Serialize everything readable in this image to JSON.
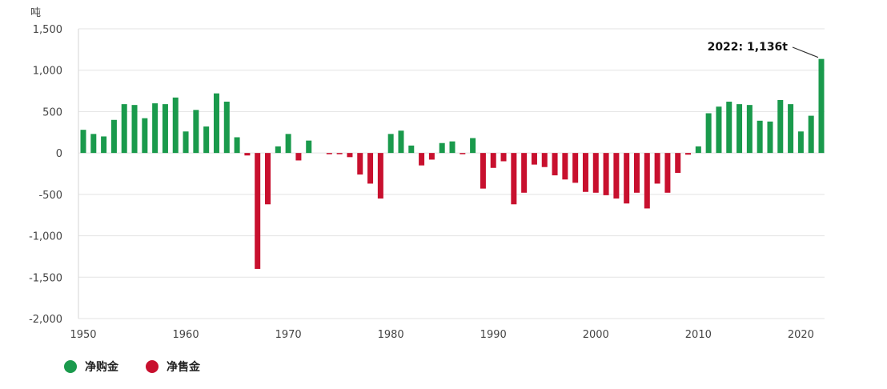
{
  "chart_data": {
    "type": "bar",
    "unit_label": "吨",
    "title": "",
    "xlabel": "",
    "ylabel": "吨",
    "ylim": [
      -2000,
      1500
    ],
    "yticks": [
      1500,
      1000,
      500,
      0,
      -500,
      -1000,
      -1500,
      -2000
    ],
    "ytick_labels": [
      "1,500",
      "1,000",
      "500",
      "0",
      "-500",
      "-1,000",
      "-1,500",
      "-2,000"
    ],
    "xticks": [
      1950,
      1960,
      1970,
      1980,
      1990,
      2000,
      2010,
      2020
    ],
    "xlim": [
      1950,
      2022
    ],
    "grid": true,
    "legend_position": "bottom-left",
    "series": [
      {
        "name": "净购金",
        "color": "#1a9a4c"
      },
      {
        "name": "净售金",
        "color": "#c8102e"
      }
    ],
    "years": [
      1950,
      1951,
      1952,
      1953,
      1954,
      1955,
      1956,
      1957,
      1958,
      1959,
      1960,
      1961,
      1962,
      1963,
      1964,
      1965,
      1966,
      1967,
      1968,
      1969,
      1970,
      1971,
      1972,
      1973,
      1974,
      1975,
      1976,
      1977,
      1978,
      1979,
      1980,
      1981,
      1982,
      1983,
      1984,
      1985,
      1986,
      1987,
      1988,
      1989,
      1990,
      1991,
      1992,
      1993,
      1994,
      1995,
      1996,
      1997,
      1998,
      1999,
      2000,
      2001,
      2002,
      2003,
      2004,
      2005,
      2006,
      2007,
      2008,
      2009,
      2010,
      2011,
      2012,
      2013,
      2014,
      2015,
      2016,
      2017,
      2018,
      2019,
      2020,
      2021,
      2022
    ],
    "values": [
      280,
      230,
      200,
      400,
      590,
      580,
      420,
      600,
      590,
      670,
      260,
      520,
      320,
      720,
      620,
      190,
      -30,
      -1400,
      -620,
      80,
      230,
      -90,
      150,
      0,
      -10,
      -10,
      -50,
      -260,
      -370,
      -550,
      230,
      270,
      90,
      -150,
      -80,
      120,
      140,
      -10,
      180,
      -430,
      -180,
      -100,
      -620,
      -480,
      -140,
      -170,
      -270,
      -320,
      -360,
      -470,
      -480,
      -510,
      -550,
      -610,
      -480,
      -670,
      -370,
      -480,
      -240,
      -20,
      80,
      480,
      560,
      620,
      590,
      580,
      390,
      380,
      640,
      590,
      260,
      450,
      1136
    ],
    "annotation": {
      "text": "2022: 1,136t",
      "year": 2022,
      "value": 1136
    }
  }
}
